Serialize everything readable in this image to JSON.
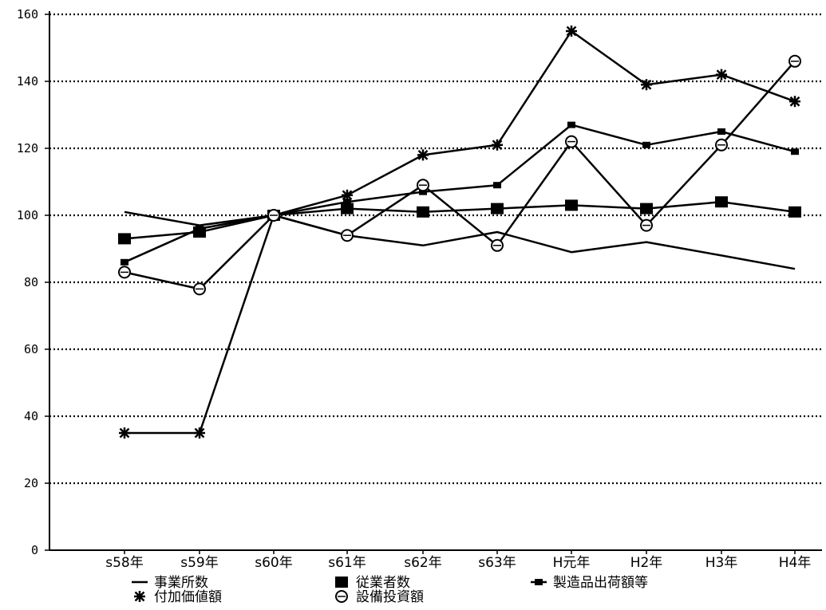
{
  "chart_data": {
    "type": "line",
    "title": "",
    "xlabel": "",
    "ylabel": "",
    "ylim": [
      0,
      160
    ],
    "yticks": [
      0,
      20,
      40,
      60,
      80,
      100,
      120,
      140,
      160
    ],
    "ytick_labels": [
      "0",
      "20",
      "40",
      "60",
      "80",
      "100",
      "120",
      "140",
      "160"
    ],
    "grid": "horizontal dotted",
    "categories": [
      "s58年",
      "s59年",
      "s60年",
      "s61年",
      "s62年",
      "s63年",
      "H元年",
      "H2年",
      "H3年",
      "H4年"
    ],
    "series": [
      {
        "name": "事業所数",
        "marker": "none",
        "values": [
          101,
          97,
          100,
          94,
          91,
          95,
          89,
          92,
          88,
          84
        ]
      },
      {
        "name": "従業者数",
        "marker": "square",
        "values": [
          93,
          95,
          100,
          102,
          101,
          102,
          103,
          102,
          104,
          101
        ]
      },
      {
        "name": "製造品出荷額等",
        "marker": "small-square",
        "values": [
          86,
          96,
          100,
          104,
          107,
          109,
          127,
          121,
          125,
          119
        ]
      },
      {
        "name": "付加価値額",
        "marker": "asterisk",
        "values": [
          35,
          35,
          100,
          106,
          118,
          121,
          155,
          139,
          142,
          134
        ]
      },
      {
        "name": "設備投資額",
        "marker": "circle",
        "values": [
          83,
          78,
          100,
          94,
          109,
          91,
          122,
          97,
          121,
          146
        ]
      }
    ],
    "legend_position": "bottom"
  }
}
